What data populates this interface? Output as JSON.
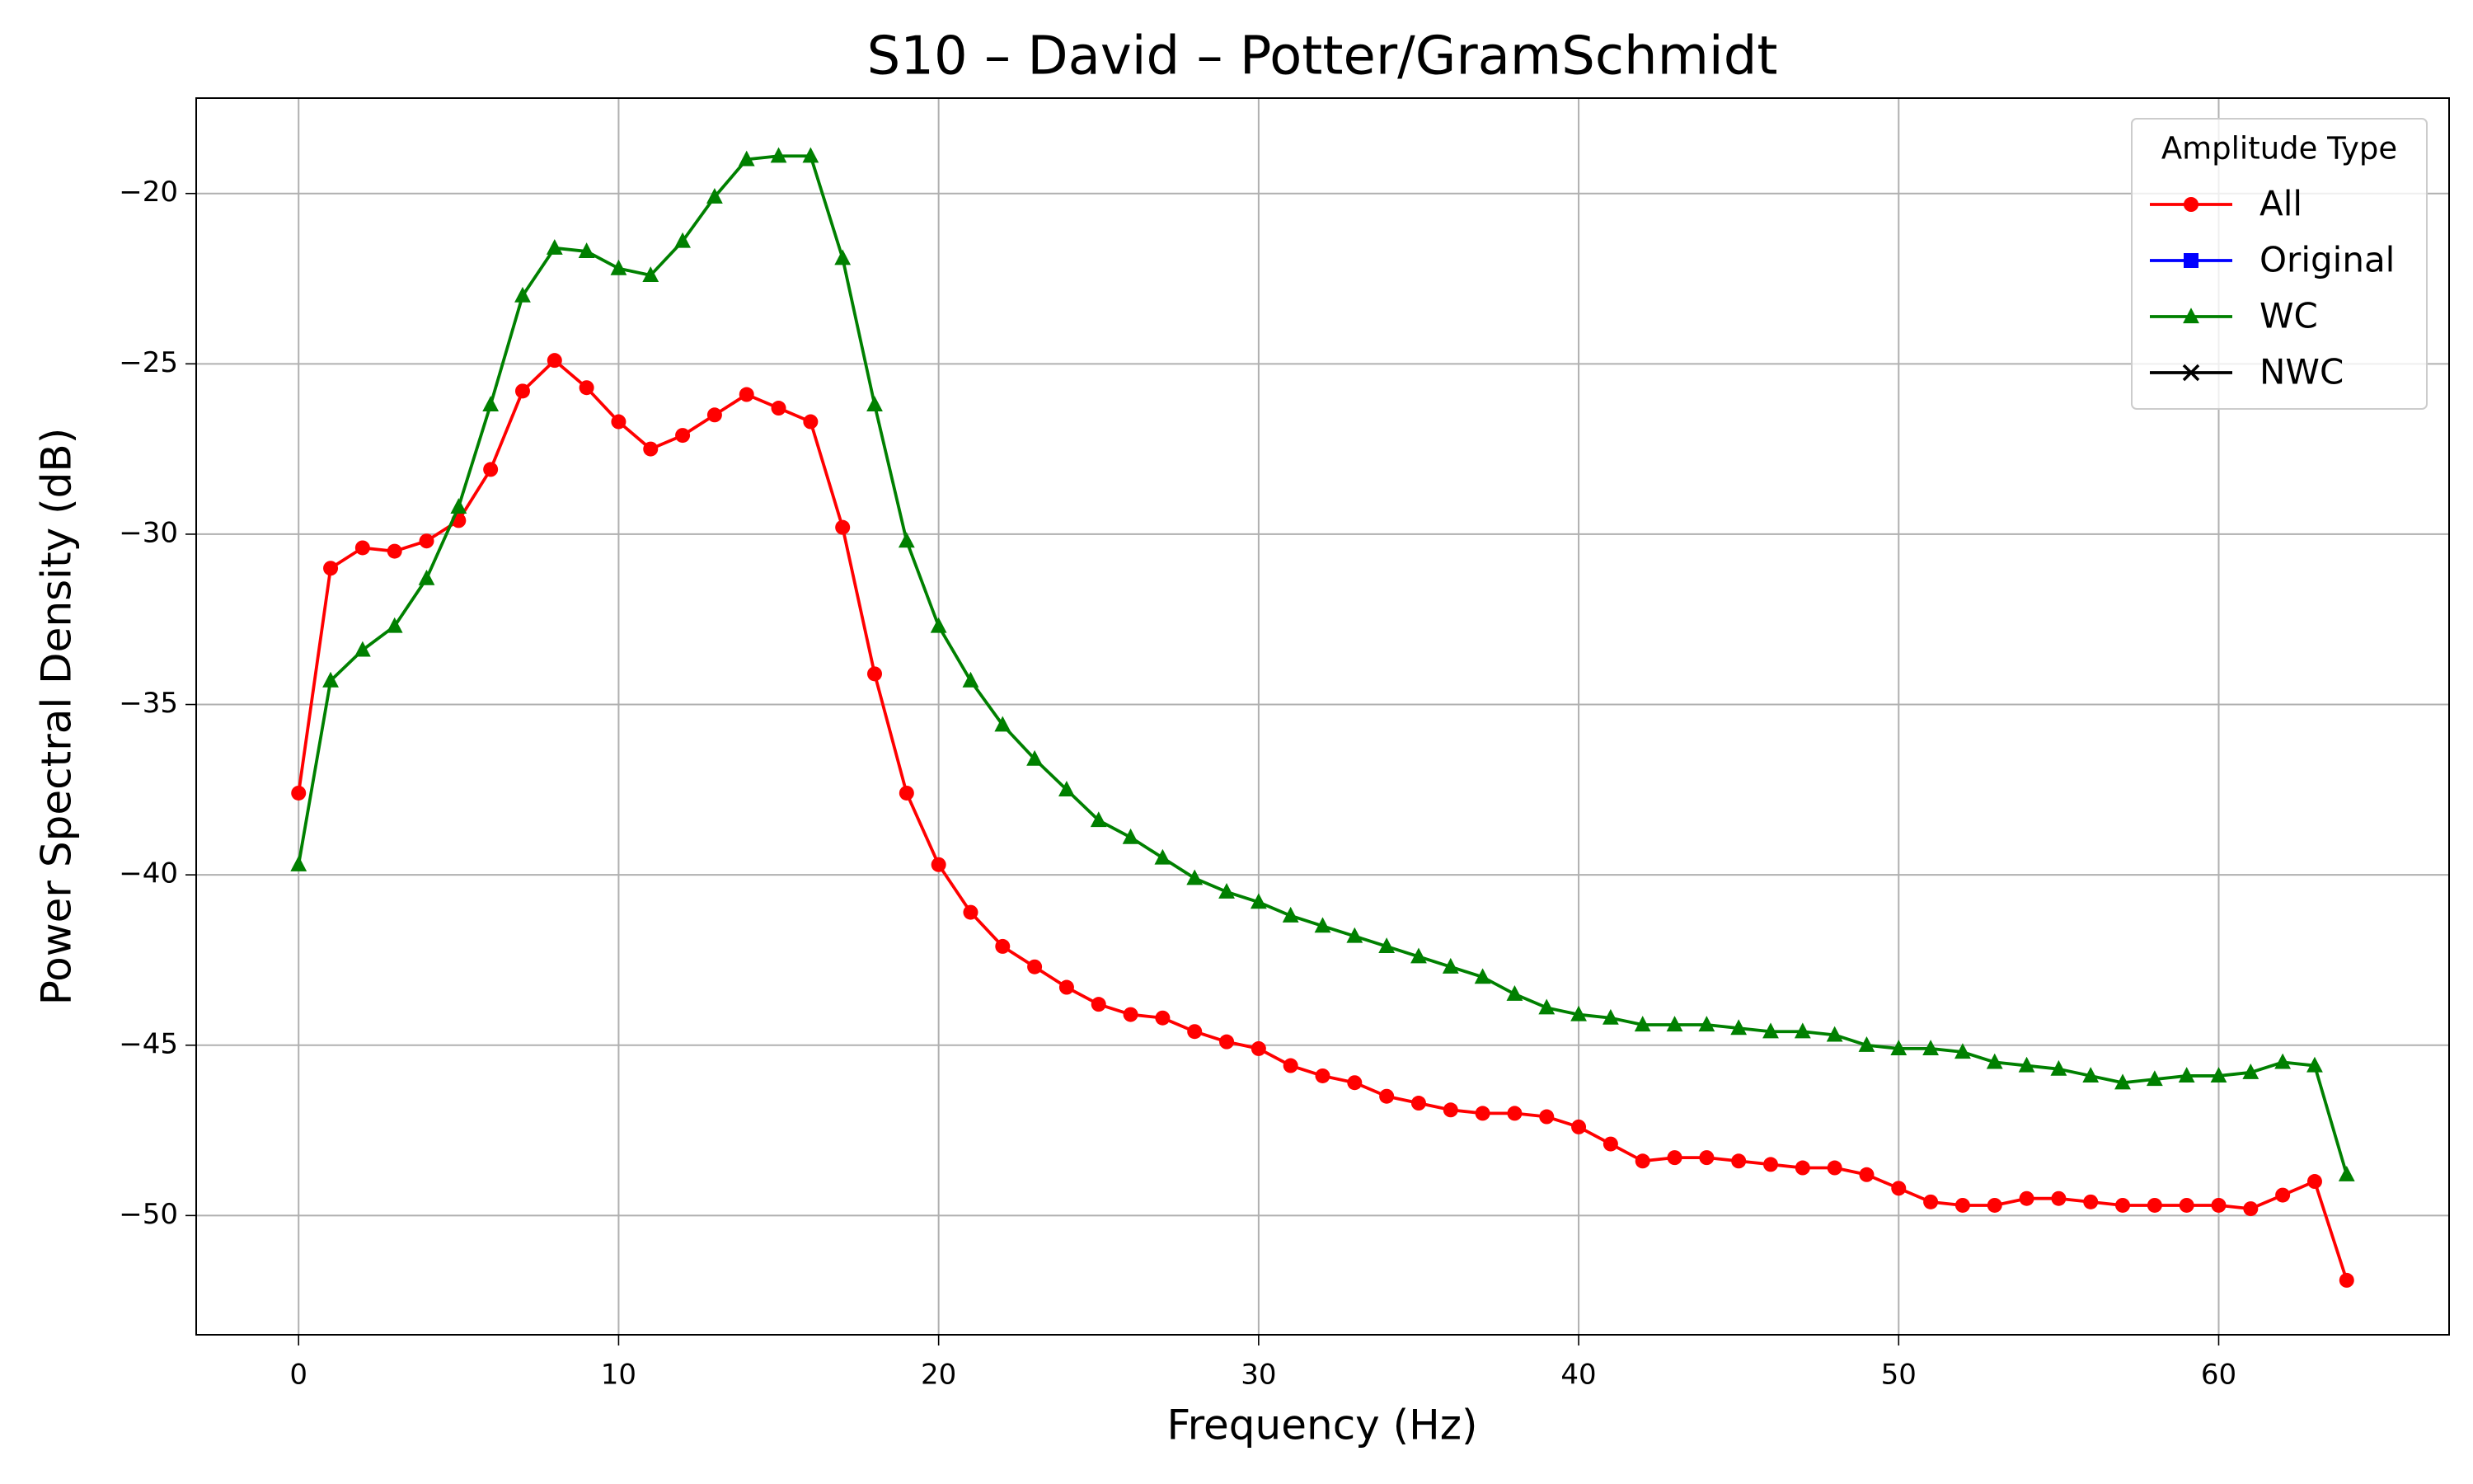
{
  "chart_data": {
    "type": "line",
    "title": "S10 – David – Potter/GramSchmidt",
    "x_label": "Frequency (Hz)",
    "y_label": "Power Spectral Density (dB)",
    "x": [
      0,
      1,
      2,
      3,
      4,
      5,
      6,
      7,
      8,
      9,
      10,
      11,
      12,
      13,
      14,
      15,
      16,
      17,
      18,
      19,
      20,
      21,
      22,
      23,
      24,
      25,
      26,
      27,
      28,
      29,
      30,
      31,
      32,
      33,
      34,
      35,
      36,
      37,
      38,
      39,
      40,
      41,
      42,
      43,
      44,
      45,
      46,
      47,
      48,
      49,
      50,
      51,
      52,
      53,
      54,
      55,
      56,
      57,
      58,
      59,
      60,
      61,
      62,
      63,
      64
    ],
    "series": [
      {
        "name": "All",
        "color": "#ff0000",
        "marker": "circle",
        "values": [
          -37.6,
          -31.0,
          -30.4,
          -30.5,
          -30.2,
          -29.6,
          -28.1,
          -25.8,
          -24.9,
          -25.7,
          -26.7,
          -27.5,
          -27.1,
          -26.5,
          -25.9,
          -26.3,
          -26.7,
          -29.8,
          -34.1,
          -37.6,
          -39.7,
          -41.1,
          -42.1,
          -42.7,
          -43.3,
          -43.8,
          -44.1,
          -44.2,
          -44.6,
          -44.9,
          -45.1,
          -45.6,
          -45.9,
          -46.1,
          -46.5,
          -46.7,
          -46.9,
          -47.0,
          -47.0,
          -47.1,
          -47.4,
          -47.9,
          -48.4,
          -48.3,
          -48.3,
          -48.4,
          -48.5,
          -48.6,
          -48.6,
          -48.8,
          -49.2,
          -49.6,
          -49.7,
          -49.7,
          -49.5,
          -49.5,
          -49.6,
          -49.7,
          -49.7,
          -49.7,
          -49.7,
          -49.8,
          -49.4,
          -49.0,
          -51.9
        ]
      },
      {
        "name": "Original",
        "color": "#0000ff",
        "marker": "square",
        "values": [
          null,
          null,
          null,
          null,
          null,
          null,
          null,
          null,
          null,
          null,
          null,
          null,
          null,
          null,
          null,
          null,
          null,
          null,
          null,
          null,
          null,
          null,
          null,
          null,
          null,
          null,
          null,
          null,
          null,
          null,
          null,
          null,
          null,
          null,
          null,
          null,
          null,
          null,
          null,
          null,
          null,
          null,
          null,
          null,
          null,
          null,
          null,
          null,
          null,
          null,
          null,
          null,
          null,
          null,
          null,
          null,
          null,
          null,
          null,
          null,
          null,
          null,
          null,
          null,
          null
        ]
      },
      {
        "name": "WC",
        "color": "#008000",
        "marker": "triangle",
        "values": [
          -39.7,
          -34.3,
          -33.4,
          -32.7,
          -31.3,
          -29.2,
          -26.2,
          -23.0,
          -21.6,
          -21.7,
          -22.2,
          -22.4,
          -21.4,
          -20.1,
          -19.0,
          -18.9,
          -18.9,
          -21.9,
          -26.2,
          -30.2,
          -32.7,
          -34.3,
          -35.6,
          -36.6,
          -37.5,
          -38.4,
          -38.9,
          -39.5,
          -40.1,
          -40.5,
          -40.8,
          -41.2,
          -41.5,
          -41.8,
          -42.1,
          -42.4,
          -42.7,
          -43.0,
          -43.5,
          -43.9,
          -44.1,
          -44.2,
          -44.4,
          -44.4,
          -44.4,
          -44.5,
          -44.6,
          -44.6,
          -44.7,
          -45.0,
          -45.1,
          -45.1,
          -45.2,
          -45.5,
          -45.6,
          -45.7,
          -45.9,
          -46.1,
          -46.0,
          -45.9,
          -45.9,
          -45.8,
          -45.5,
          -45.6,
          -48.8
        ]
      },
      {
        "name": "NWC",
        "color": "#000000",
        "marker": "x",
        "values": [
          null,
          null,
          null,
          null,
          null,
          null,
          null,
          null,
          null,
          null,
          null,
          null,
          null,
          null,
          null,
          null,
          null,
          null,
          null,
          null,
          null,
          null,
          null,
          null,
          null,
          null,
          null,
          null,
          null,
          null,
          null,
          null,
          null,
          null,
          null,
          null,
          null,
          null,
          null,
          null,
          null,
          null,
          null,
          null,
          null,
          null,
          null,
          null,
          null,
          null,
          null,
          null,
          null,
          null,
          null,
          null,
          null,
          null,
          null,
          null,
          null,
          null,
          null,
          null,
          null
        ]
      }
    ],
    "legend_title": "Amplitude Type",
    "legend": "upper right",
    "xlim": [
      -3.2,
      67.2
    ],
    "ylim": [
      -53.5,
      -17.2
    ],
    "xticks": [
      0,
      10,
      20,
      30,
      40,
      50,
      60
    ],
    "yticks": [
      {
        "value": -50,
        "label": "−50"
      },
      {
        "value": -45,
        "label": "−45"
      },
      {
        "value": -40,
        "label": "−40"
      },
      {
        "value": -35,
        "label": "−35"
      },
      {
        "value": -30,
        "label": "−30"
      },
      {
        "value": -25,
        "label": "−25"
      },
      {
        "value": -20,
        "label": "−20"
      }
    ],
    "grid": true
  }
}
